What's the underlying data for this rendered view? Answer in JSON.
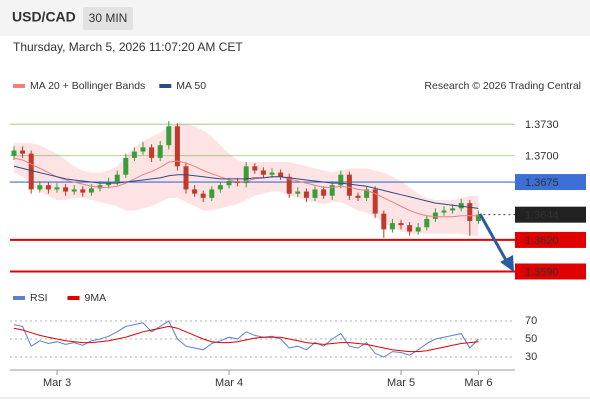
{
  "header": {
    "symbol": "USD/CAD",
    "timeframe": "30 MIN",
    "timestamp": "Thursday, March 5, 2026 11:07:20 AM CET",
    "source": "Research © 2026 Trading Central"
  },
  "chart_data": [
    {
      "type": "candlestick",
      "up_color": "#3a9d3a",
      "down_color": "#c0392b",
      "open": [
        1.37,
        1.3705,
        1.3702,
        1.3668,
        1.3672,
        1.3668,
        1.367,
        1.3666,
        1.3668,
        1.3665,
        1.3669,
        1.3672,
        1.3675,
        1.3682,
        1.3698,
        1.3704,
        1.3708,
        1.3698,
        1.371,
        1.3728,
        1.369,
        1.3668,
        1.3664,
        1.366,
        1.3668,
        1.3672,
        1.3676,
        1.3674,
        1.369,
        1.3686,
        1.3682,
        1.3684,
        1.368,
        1.3664,
        1.3666,
        1.366,
        1.3668,
        1.3662,
        1.3672,
        1.3682,
        1.3662,
        1.366,
        1.3668,
        1.3645,
        1.363,
        1.3636,
        1.3634,
        1.3628,
        1.3632,
        1.364,
        1.3646,
        1.3648,
        1.365,
        1.3655,
        1.3638
      ],
      "high": [
        1.3709,
        1.3709,
        1.3705,
        1.3676,
        1.3675,
        1.3674,
        1.3673,
        1.3672,
        1.3671,
        1.3673,
        1.3676,
        1.3679,
        1.3686,
        1.3702,
        1.3708,
        1.3713,
        1.3711,
        1.3714,
        1.3733,
        1.3731,
        1.3694,
        1.3672,
        1.3667,
        1.3671,
        1.3675,
        1.3679,
        1.3679,
        1.3694,
        1.3693,
        1.3689,
        1.3688,
        1.3687,
        1.3683,
        1.367,
        1.3669,
        1.3671,
        1.3671,
        1.3676,
        1.3686,
        1.3685,
        1.3665,
        1.3671,
        1.3671,
        1.3648,
        1.364,
        1.3639,
        1.3637,
        1.3636,
        1.3643,
        1.365,
        1.3652,
        1.3654,
        1.3659,
        1.3658,
        1.3648
      ],
      "low": [
        1.3696,
        1.3698,
        1.3664,
        1.3665,
        1.3664,
        1.3665,
        1.3662,
        1.3663,
        1.3661,
        1.3662,
        1.3666,
        1.3669,
        1.3672,
        1.3679,
        1.3695,
        1.3701,
        1.3694,
        1.3695,
        1.3706,
        1.3686,
        1.3664,
        1.3661,
        1.3656,
        1.3657,
        1.3665,
        1.3669,
        1.3671,
        1.367,
        1.3683,
        1.3679,
        1.3679,
        1.3677,
        1.366,
        1.3661,
        1.3656,
        1.3657,
        1.3659,
        1.3658,
        1.3669,
        1.3658,
        1.3657,
        1.3657,
        1.3641,
        1.3622,
        1.3627,
        1.363,
        1.3624,
        1.3625,
        1.3629,
        1.3637,
        1.3643,
        1.3645,
        1.3647,
        1.3624,
        1.3635
      ],
      "close": [
        1.3705,
        1.3702,
        1.3668,
        1.3672,
        1.3668,
        1.367,
        1.3666,
        1.3668,
        1.3665,
        1.3669,
        1.3672,
        1.3675,
        1.3682,
        1.3698,
        1.3704,
        1.3708,
        1.3698,
        1.371,
        1.3728,
        1.369,
        1.3668,
        1.3664,
        1.366,
        1.3668,
        1.3672,
        1.3676,
        1.3674,
        1.369,
        1.3686,
        1.3682,
        1.3684,
        1.368,
        1.3664,
        1.3666,
        1.366,
        1.3668,
        1.3662,
        1.3672,
        1.3682,
        1.3662,
        1.366,
        1.3668,
        1.3645,
        1.363,
        1.3636,
        1.3634,
        1.3628,
        1.3632,
        1.364,
        1.3646,
        1.3648,
        1.365,
        1.3655,
        1.3638,
        1.3644
      ],
      "series": [
        {
          "name": "MA 20 + Bollinger Bands",
          "color": "#f08080",
          "band_color": "#fde3e3",
          "values": [
            1.3698,
            1.3696,
            1.3692,
            1.3688,
            1.3684,
            1.368,
            1.3677,
            1.3675,
            1.3673,
            1.3671,
            1.367,
            1.367,
            1.3671,
            1.3674,
            1.3678,
            1.3682,
            1.3685,
            1.3689,
            1.3694,
            1.3695,
            1.3693,
            1.369,
            1.3686,
            1.3683,
            1.368,
            1.3677,
            1.3675,
            1.3676,
            1.3678,
            1.3679,
            1.368,
            1.368,
            1.3678,
            1.3676,
            1.3674,
            1.3672,
            1.367,
            1.367,
            1.3671,
            1.367,
            1.3668,
            1.3667,
            1.3664,
            1.366,
            1.3656,
            1.3652,
            1.3648,
            1.3645,
            1.3643,
            1.3642,
            1.3642,
            1.3642,
            1.3643,
            1.3643,
            1.3643
          ],
          "upper": [
            1.3712,
            1.3712,
            1.3712,
            1.371,
            1.3706,
            1.3702,
            1.3696,
            1.369,
            1.3686,
            1.3684,
            1.3684,
            1.3686,
            1.369,
            1.37,
            1.3708,
            1.3714,
            1.3718,
            1.3722,
            1.3728,
            1.373,
            1.373,
            1.3728,
            1.3724,
            1.3718,
            1.371,
            1.3702,
            1.3696,
            1.3694,
            1.3694,
            1.3694,
            1.3694,
            1.3694,
            1.3694,
            1.3692,
            1.369,
            1.3688,
            1.3686,
            1.3684,
            1.3686,
            1.3688,
            1.3688,
            1.3688,
            1.3686,
            1.3684,
            1.368,
            1.3676,
            1.367,
            1.3664,
            1.366,
            1.3658,
            1.3658,
            1.3658,
            1.366,
            1.3662,
            1.3662
          ],
          "lower": [
            1.3684,
            1.368,
            1.3672,
            1.3666,
            1.3662,
            1.3658,
            1.3658,
            1.366,
            1.366,
            1.3658,
            1.3656,
            1.3654,
            1.3652,
            1.3648,
            1.3648,
            1.365,
            1.3652,
            1.3656,
            1.366,
            1.366,
            1.3656,
            1.3652,
            1.3648,
            1.3648,
            1.365,
            1.3652,
            1.3654,
            1.3658,
            1.3662,
            1.3664,
            1.3666,
            1.3666,
            1.3662,
            1.366,
            1.3658,
            1.3656,
            1.3654,
            1.3656,
            1.3656,
            1.3652,
            1.3648,
            1.3646,
            1.3642,
            1.3636,
            1.3632,
            1.3628,
            1.3626,
            1.3626,
            1.3626,
            1.3626,
            1.3626,
            1.3626,
            1.3626,
            1.3624,
            1.3624
          ]
        },
        {
          "name": "MA 50",
          "color": "#2e4a8a",
          "values": [
            1.369,
            1.3688,
            1.3686,
            1.3684,
            1.3682,
            1.368,
            1.3678,
            1.3677,
            1.3676,
            1.3675,
            1.3674,
            1.3674,
            1.3674,
            1.3675,
            1.3676,
            1.3677,
            1.3678,
            1.3679,
            1.3681,
            1.3682,
            1.3682,
            1.3681,
            1.368,
            1.3679,
            1.3678,
            1.3678,
            1.3678,
            1.3678,
            1.3679,
            1.3679,
            1.368,
            1.368,
            1.3679,
            1.3678,
            1.3677,
            1.3676,
            1.3675,
            1.3674,
            1.3674,
            1.3673,
            1.3672,
            1.3671,
            1.3669,
            1.3667,
            1.3665,
            1.3663,
            1.3661,
            1.3659,
            1.3657,
            1.3655,
            1.3654,
            1.3653,
            1.3652,
            1.3651,
            1.365
          ]
        }
      ],
      "ylim": [
        1.358,
        1.3753
      ],
      "yticks": [
        {
          "value": 1.373,
          "label": "1.3730"
        },
        {
          "value": 1.37,
          "label": "1.3700"
        },
        {
          "value": 1.3675,
          "label": "1.3675"
        },
        {
          "value": 1.3644,
          "label": "1.3644"
        },
        {
          "value": 1.362,
          "label": "1.3620"
        },
        {
          "value": 1.359,
          "label": "1.3590"
        }
      ],
      "tick_colors": [
        "#6aaa3a",
        "#6aaa3a",
        "#3d6fd6",
        "#222222",
        "#e00000",
        "#e00000"
      ],
      "tick_styles": [
        "thin",
        "thin",
        "line",
        "dotted",
        "thick",
        "thick"
      ]
    },
    {
      "type": "line",
      "categories": [
        null,
        null,
        null,
        null,
        null,
        "Mar 3",
        null,
        null,
        null,
        null,
        null,
        null,
        null,
        null,
        null,
        null,
        null,
        null,
        null,
        null,
        null,
        null,
        null,
        null,
        null,
        "Mar 4",
        null,
        null,
        null,
        null,
        null,
        null,
        null,
        null,
        null,
        null,
        null,
        null,
        null,
        null,
        null,
        null,
        null,
        null,
        null,
        "Mar 5",
        null,
        null,
        null,
        null,
        null,
        null,
        null,
        null,
        "Mar 6"
      ],
      "series": [
        {
          "name": "RSI",
          "color": "#5b7fd6",
          "values": [
            66,
            64,
            42,
            48,
            45,
            47,
            44,
            46,
            43,
            48,
            50,
            53,
            58,
            64,
            66,
            68,
            58,
            64,
            70,
            50,
            42,
            40,
            38,
            45,
            48,
            52,
            50,
            58,
            54,
            52,
            53,
            50,
            40,
            42,
            38,
            46,
            42,
            50,
            56,
            42,
            40,
            46,
            34,
            30,
            36,
            35,
            32,
            38,
            45,
            50,
            52,
            54,
            56,
            40,
            50
          ]
        },
        {
          "name": "9MA",
          "color": "#e00000",
          "values": [
            62,
            60,
            57,
            54,
            52,
            50,
            48,
            47,
            46,
            46,
            47,
            48,
            50,
            52,
            55,
            58,
            60,
            62,
            64,
            62,
            58,
            54,
            50,
            47,
            46,
            46,
            47,
            49,
            51,
            52,
            52,
            52,
            50,
            48,
            46,
            45,
            44,
            45,
            46,
            46,
            45,
            44,
            42,
            40,
            38,
            37,
            36,
            36,
            37,
            39,
            41,
            43,
            45,
            46,
            47
          ]
        }
      ],
      "ylim": [
        20,
        80
      ],
      "yticks": [
        30,
        50,
        70
      ],
      "grid": true
    }
  ]
}
